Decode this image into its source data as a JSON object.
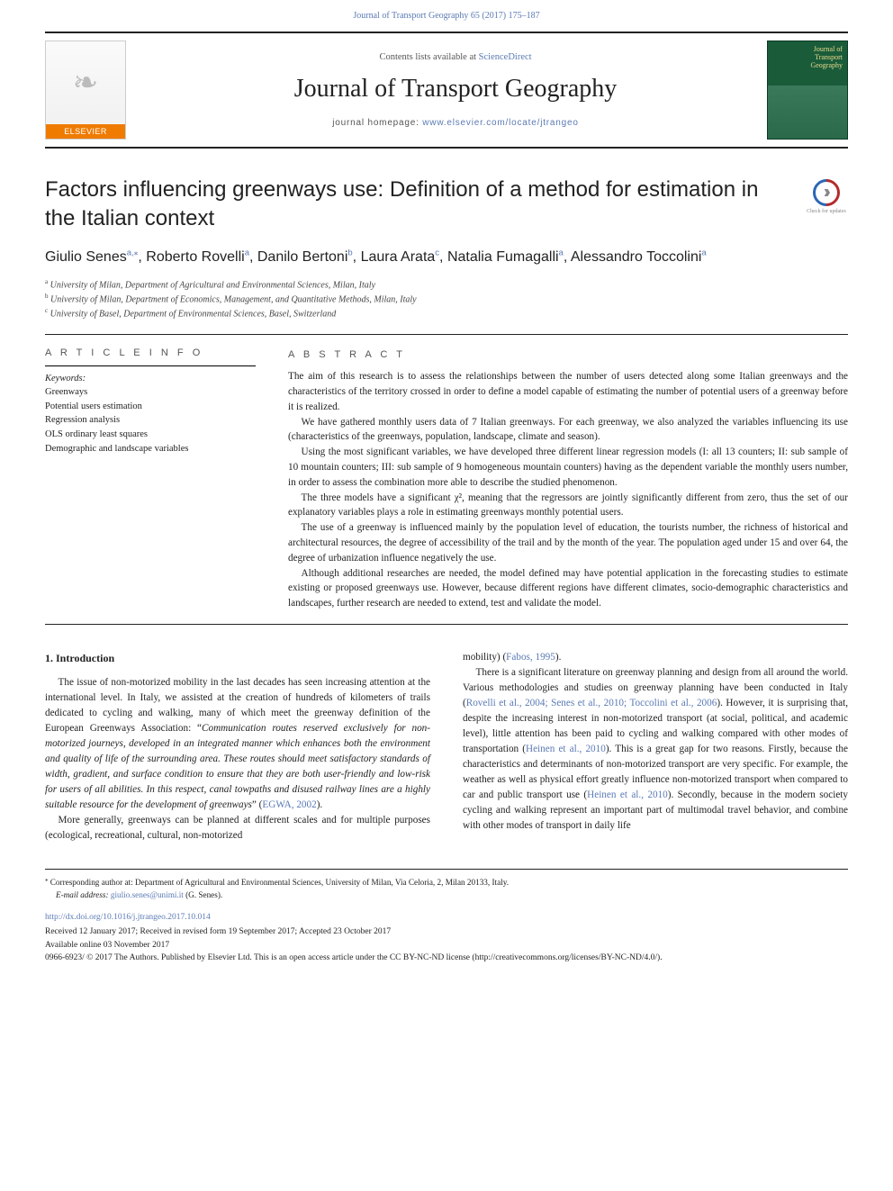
{
  "topRef": {
    "text": "Journal of Transport Geography 65 (2017) 175–187",
    "link_color": "#5b7ab5"
  },
  "header": {
    "contents_prefix": "Contents lists available at ",
    "contents_link": "ScienceDirect",
    "journal_name": "Journal of Transport Geography",
    "homepage_prefix": "journal homepage: ",
    "homepage_link": "www.elsevier.com/locate/jtrangeo",
    "elsevier_label": "ELSEVIER",
    "cover_title_line1": "Journal of",
    "cover_title_line2": "Transport",
    "cover_title_line3": "Geography"
  },
  "article": {
    "title": "Factors influencing greenways use: Definition of a method for estimation in the Italian context",
    "check_updates_label": "Check for updates",
    "authors_html_parts": {
      "a1_name": "Giulio Senes",
      "a1_sup": "a,",
      "a1_star": "⁎",
      "sep": ", ",
      "a2_name": "Roberto Rovelli",
      "a2_sup": "a",
      "a3_name": "Danilo Bertoni",
      "a3_sup": "b",
      "a4_name": "Laura Arata",
      "a4_sup": "c",
      "a5_name": "Natalia Fumagalli",
      "a5_sup": "a",
      "a6_name": "Alessandro Toccolini",
      "a6_sup": "a"
    },
    "affiliations": {
      "a": {
        "sup": "a",
        "text": "University of Milan, Department of Agricultural and Environmental Sciences, Milan, Italy"
      },
      "b": {
        "sup": "b",
        "text": "University of Milan, Department of Economics, Management, and Quantitative Methods, Milan, Italy"
      },
      "c": {
        "sup": "c",
        "text": "University of Basel, Department of Environmental Sciences, Basel, Switzerland"
      }
    }
  },
  "article_info_heading": "A R T I C L E   I N F O",
  "abstract_heading": "A B S T R A C T",
  "keywords_label": "Keywords:",
  "keywords": [
    "Greenways",
    "Potential users estimation",
    "Regression analysis",
    "OLS ordinary least squares",
    "Demographic and landscape variables"
  ],
  "abstract_paragraphs": [
    "The aim of this research is to assess the relationships between the number of users detected along some Italian greenways and the characteristics of the territory crossed in order to define a model capable of estimating the number of potential users of a greenway before it is realized.",
    "We have gathered monthly users data of 7 Italian greenways. For each greenway, we also analyzed the variables influencing its use (characteristics of the greenways, population, landscape, climate and season).",
    "Using the most significant variables, we have developed three different linear regression models (I: all 13 counters; II: sub sample of 10 mountain counters; III: sub sample of 9 homogeneous mountain counters) having as the dependent variable the monthly users number, in order to assess the combination more able to describe the studied phenomenon.",
    "The three models have a significant χ², meaning that the regressors are jointly significantly different from zero, thus the set of our explanatory variables plays a role in estimating greenways monthly potential users.",
    "The use of a greenway is influenced mainly by the population level of education, the tourists number, the richness of historical and architectural resources, the degree of accessibility of the trail and by the month of the year. The population aged under 15 and over 64, the degree of urbanization influence negatively the use.",
    "Although additional researches are needed, the model defined may have potential application in the forecasting studies to estimate existing or proposed greenways use. However, because different regions have different climates, socio-demographic characteristics and landscapes, further research are needed to extend, test and validate the model."
  ],
  "intro_heading": "1. Introduction",
  "col1_runs": [
    {
      "t": "The issue of non-motorized mobility in the last decades has seen increasing attention at the international level. In Italy, we assisted at the creation of hundreds of kilometers of trails dedicated to cycling and walking, many of which meet the greenway definition of the European Greenways Association: “"
    },
    {
      "t": "Communication routes reserved exclusively for non-motorized journeys, developed in an integrated manner which enhances both the environment and quality of life of the surrounding area. These routes should meet satisfactory standards of width, gradient, and surface condition to ensure that they are both user-friendly and low-risk for users of all abilities. In this respect, canal towpaths and disused railway lines are a highly suitable resource for the development of greenways",
      "i": true
    },
    {
      "t": "” ("
    },
    {
      "t": "EGWA, 2002",
      "link": true
    },
    {
      "t": ")."
    }
  ],
  "col1_p2": "More generally, greenways can be planned at different scales and for multiple purposes (ecological, recreational, cultural, non-motorized",
  "col2_runs1": [
    {
      "t": "mobility) ("
    },
    {
      "t": "Fabos, 1995",
      "link": true
    },
    {
      "t": ")."
    }
  ],
  "col2_runs2": [
    {
      "t": "There is a significant literature on greenway planning and design from all around the world. Various methodologies and studies on greenway planning have been conducted in Italy ("
    },
    {
      "t": "Rovelli et al., 2004; Senes et al., 2010; Toccolini et al., 2006",
      "link": true
    },
    {
      "t": "). However, it is surprising that, despite the increasing interest in non-motorized transport (at social, political, and academic level), little attention has been paid to cycling and walking compared with other modes of transportation ("
    },
    {
      "t": "Heinen et al., 2010",
      "link": true
    },
    {
      "t": "). This is a great gap for two reasons. Firstly, because the characteristics and determinants of non-motorized transport are very specific. For example, the weather as well as physical effort greatly influence non-motorized transport when compared to car and public transport use ("
    },
    {
      "t": "Heinen et al., 2010",
      "link": true
    },
    {
      "t": "). Secondly, because in the modern society cycling and walking represent an important part of multimodal travel behavior, and combine with other modes of transport in daily life"
    }
  ],
  "footnotes": {
    "corresponding": "Corresponding author at: Department of Agricultural and Environmental Sciences, University of Milan, Via Celoria, 2, Milan 20133, Italy.",
    "email_label": "E-mail address:",
    "email": "giulio.senes@unimi.it",
    "email_person": "(G. Senes).",
    "doi": "http://dx.doi.org/10.1016/j.jtrangeo.2017.10.014",
    "history": "Received 12 January 2017; Received in revised form 19 September 2017; Accepted 23 October 2017",
    "available": "Available online 03 November 2017",
    "license": "0966-6923/ © 2017 The Authors. Published by Elsevier Ltd. This is an open access article under the CC BY-NC-ND license (http://creativecommons.org/licenses/BY-NC-ND/4.0/)."
  },
  "colors": {
    "link": "#5b7ab5",
    "elsevier_orange": "#ef7b00",
    "cover_green": "#1a5c3a"
  }
}
